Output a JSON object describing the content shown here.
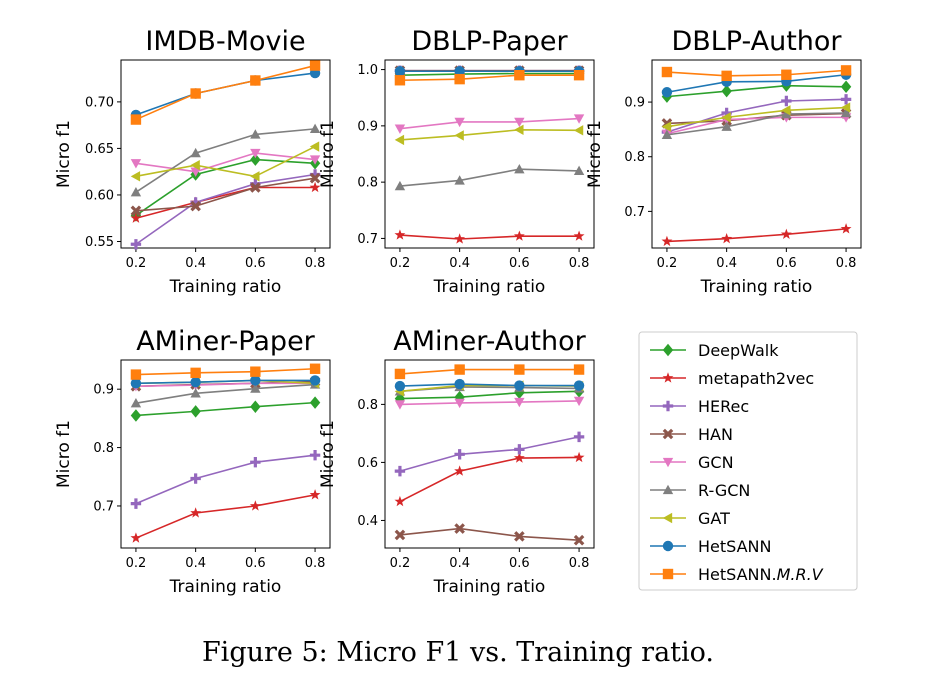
{
  "caption": "Figure 5: Micro F1 vs. Training ratio.",
  "legend": [
    {
      "name": "DeepWalk",
      "key": "deepwalk"
    },
    {
      "name": "metapath2vec",
      "key": "metapath2vec"
    },
    {
      "name": "HERec",
      "key": "herec"
    },
    {
      "name": "HAN",
      "key": "han"
    },
    {
      "name": "GCN",
      "key": "gcn"
    },
    {
      "name": "R-GCN",
      "key": "rgcn"
    },
    {
      "name": "GAT",
      "key": "gat"
    },
    {
      "name": "HetSANN",
      "key": "hetsann"
    },
    {
      "name": "HetSANN.",
      "name_italic": "M.R.V",
      "key": "hetsann_mrv"
    }
  ],
  "series_styles": {
    "deepwalk": {
      "color": "#2ca02c",
      "marker": "diamond"
    },
    "metapath2vec": {
      "color": "#d62728",
      "marker": "star"
    },
    "herec": {
      "color": "#9467bd",
      "marker": "plus"
    },
    "han": {
      "color": "#8c564b",
      "marker": "x"
    },
    "gcn": {
      "color": "#e377c2",
      "marker": "triangle-down"
    },
    "rgcn": {
      "color": "#7f7f7f",
      "marker": "triangle-up"
    },
    "gat": {
      "color": "#bcbd22",
      "marker": "triangle-left"
    },
    "hetsann": {
      "color": "#1f77b4",
      "marker": "circle"
    },
    "hetsann_mrv": {
      "color": "#ff7f0e",
      "marker": "square"
    }
  },
  "chart_data": [
    {
      "type": "line",
      "title": "IMDB-Movie",
      "xlabel": "Training ratio",
      "ylabel": "Micro f1",
      "x": [
        0.2,
        0.4,
        0.6,
        0.8
      ],
      "x_ticks": [
        "0.2",
        "0.4",
        "0.6",
        "0.8"
      ],
      "xlim": [
        0.15,
        0.85
      ],
      "ylim": [
        0.543,
        0.745
      ],
      "y_ticks": [
        0.55,
        0.6,
        0.65,
        0.7
      ],
      "y_tick_labels": [
        "0.55",
        "0.60",
        "0.65",
        "0.70"
      ],
      "series": [
        {
          "key": "deepwalk",
          "values": [
            0.578,
            0.622,
            0.638,
            0.634
          ]
        },
        {
          "key": "metapath2vec",
          "values": [
            0.575,
            0.592,
            0.608,
            0.608
          ]
        },
        {
          "key": "herec",
          "values": [
            0.547,
            0.592,
            0.612,
            0.622
          ]
        },
        {
          "key": "han",
          "values": [
            0.583,
            0.588,
            0.608,
            0.618
          ]
        },
        {
          "key": "gcn",
          "values": [
            0.634,
            0.625,
            0.645,
            0.638
          ]
        },
        {
          "key": "rgcn",
          "values": [
            0.603,
            0.645,
            0.665,
            0.671
          ]
        },
        {
          "key": "gat",
          "values": [
            0.62,
            0.632,
            0.62,
            0.652
          ]
        },
        {
          "key": "hetsann",
          "values": [
            0.686,
            0.709,
            0.723,
            0.731
          ]
        },
        {
          "key": "hetsann_mrv",
          "values": [
            0.681,
            0.709,
            0.723,
            0.739
          ]
        }
      ]
    },
    {
      "type": "line",
      "title": "DBLP-Paper",
      "xlabel": "Training ratio",
      "ylabel": "Micro f1",
      "x": [
        0.2,
        0.4,
        0.6,
        0.8
      ],
      "x_ticks": [
        "0.2",
        "0.4",
        "0.6",
        "0.8"
      ],
      "xlim": [
        0.15,
        0.85
      ],
      "ylim": [
        0.683,
        1.017
      ],
      "y_ticks": [
        0.7,
        0.8,
        0.9,
        1.0
      ],
      "y_tick_labels": [
        "0.7",
        "0.8",
        "0.9",
        "1.0"
      ],
      "series": [
        {
          "key": "deepwalk",
          "values": [
            0.99,
            0.992,
            0.993,
            0.993
          ]
        },
        {
          "key": "metapath2vec",
          "values": [
            0.706,
            0.699,
            0.704,
            0.704
          ]
        },
        {
          "key": "herec",
          "values": [
            0.998,
            0.998,
            0.998,
            0.998
          ]
        },
        {
          "key": "han",
          "values": [
            0.998,
            0.998,
            0.998,
            0.998
          ]
        },
        {
          "key": "gcn",
          "values": [
            0.895,
            0.907,
            0.907,
            0.913
          ]
        },
        {
          "key": "rgcn",
          "values": [
            0.793,
            0.803,
            0.823,
            0.82
          ]
        },
        {
          "key": "gat",
          "values": [
            0.875,
            0.883,
            0.893,
            0.892
          ]
        },
        {
          "key": "hetsann",
          "values": [
            0.997,
            0.997,
            0.997,
            0.997
          ]
        },
        {
          "key": "hetsann_mrv",
          "values": [
            0.981,
            0.983,
            0.99,
            0.99
          ]
        }
      ]
    },
    {
      "type": "line",
      "title": "DBLP-Author",
      "xlabel": "Training ratio",
      "ylabel": "Micro f1",
      "x": [
        0.2,
        0.4,
        0.6,
        0.8
      ],
      "x_ticks": [
        "0.2",
        "0.4",
        "0.6",
        "0.8"
      ],
      "xlim": [
        0.15,
        0.85
      ],
      "ylim": [
        0.633,
        0.977
      ],
      "y_ticks": [
        0.7,
        0.8,
        0.9
      ],
      "y_tick_labels": [
        "0.7",
        "0.8",
        "0.9"
      ],
      "series": [
        {
          "key": "deepwalk",
          "values": [
            0.91,
            0.92,
            0.93,
            0.928
          ]
        },
        {
          "key": "metapath2vec",
          "values": [
            0.645,
            0.65,
            0.658,
            0.668
          ]
        },
        {
          "key": "herec",
          "values": [
            0.845,
            0.88,
            0.902,
            0.905
          ]
        },
        {
          "key": "han",
          "values": [
            0.861,
            0.866,
            0.876,
            0.879
          ]
        },
        {
          "key": "gcn",
          "values": [
            0.842,
            0.868,
            0.872,
            0.872
          ]
        },
        {
          "key": "rgcn",
          "values": [
            0.84,
            0.855,
            0.878,
            0.88
          ]
        },
        {
          "key": "gat",
          "values": [
            0.855,
            0.872,
            0.885,
            0.89
          ]
        },
        {
          "key": "hetsann",
          "values": [
            0.918,
            0.937,
            0.938,
            0.95
          ]
        },
        {
          "key": "hetsann_mrv",
          "values": [
            0.955,
            0.948,
            0.95,
            0.958
          ]
        }
      ]
    },
    {
      "type": "line",
      "title": "AMiner-Paper",
      "xlabel": "Training ratio",
      "ylabel": "Micro f1",
      "x": [
        0.2,
        0.4,
        0.6,
        0.8
      ],
      "x_ticks": [
        "0.2",
        "0.4",
        "0.6",
        "0.8"
      ],
      "xlim": [
        0.15,
        0.85
      ],
      "ylim": [
        0.628,
        0.95
      ],
      "y_ticks": [
        0.7,
        0.8,
        0.9
      ],
      "y_tick_labels": [
        "0.7",
        "0.8",
        "0.9"
      ],
      "series": [
        {
          "key": "deepwalk",
          "values": [
            0.855,
            0.862,
            0.87,
            0.877
          ]
        },
        {
          "key": "metapath2vec",
          "values": [
            0.645,
            0.688,
            0.7,
            0.719
          ]
        },
        {
          "key": "herec",
          "values": [
            0.704,
            0.747,
            0.775,
            0.787
          ]
        },
        {
          "key": "han",
          "values": [
            0.905,
            0.908,
            0.91,
            0.913
          ]
        },
        {
          "key": "gcn",
          "values": [
            0.905,
            0.907,
            0.91,
            0.91
          ]
        },
        {
          "key": "rgcn",
          "values": [
            0.876,
            0.893,
            0.901,
            0.908
          ]
        },
        {
          "key": "gat",
          "values": [
            0.91,
            0.912,
            0.915,
            0.91
          ]
        },
        {
          "key": "hetsann",
          "values": [
            0.91,
            0.912,
            0.915,
            0.915
          ]
        },
        {
          "key": "hetsann_mrv",
          "values": [
            0.925,
            0.928,
            0.93,
            0.935
          ]
        }
      ]
    },
    {
      "type": "line",
      "title": "AMiner-Author",
      "xlabel": "Training ratio",
      "ylabel": "Micro f1",
      "x": [
        0.2,
        0.4,
        0.6,
        0.8
      ],
      "x_ticks": [
        "0.2",
        "0.4",
        "0.6",
        "0.8"
      ],
      "xlim": [
        0.15,
        0.85
      ],
      "ylim": [
        0.305,
        0.953
      ],
      "y_ticks": [
        0.4,
        0.6,
        0.8
      ],
      "y_tick_labels": [
        "0.4",
        "0.6",
        "0.8"
      ],
      "series": [
        {
          "key": "deepwalk",
          "values": [
            0.82,
            0.825,
            0.84,
            0.845
          ]
        },
        {
          "key": "metapath2vec",
          "values": [
            0.465,
            0.57,
            0.615,
            0.617
          ]
        },
        {
          "key": "herec",
          "values": [
            0.57,
            0.628,
            0.645,
            0.688
          ]
        },
        {
          "key": "han",
          "values": [
            0.35,
            0.372,
            0.345,
            0.332
          ]
        },
        {
          "key": "gcn",
          "values": [
            0.8,
            0.805,
            0.808,
            0.812
          ]
        },
        {
          "key": "rgcn",
          "values": [
            0.845,
            0.86,
            0.858,
            0.855
          ]
        },
        {
          "key": "gat",
          "values": [
            0.845,
            0.865,
            0.865,
            0.863
          ]
        },
        {
          "key": "hetsann",
          "values": [
            0.863,
            0.87,
            0.865,
            0.865
          ]
        },
        {
          "key": "hetsann_mrv",
          "values": [
            0.905,
            0.92,
            0.92,
            0.92
          ]
        }
      ]
    }
  ]
}
